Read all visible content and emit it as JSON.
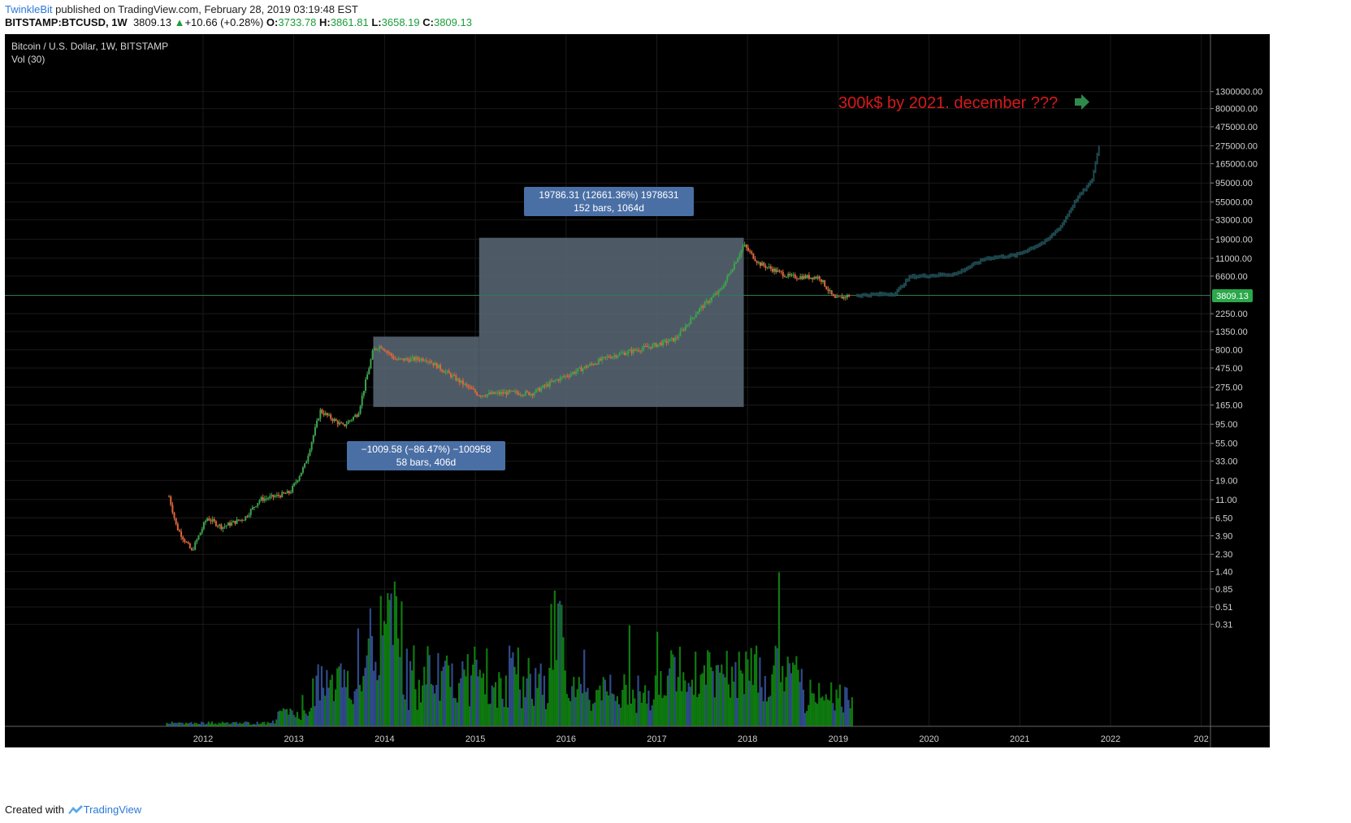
{
  "header": {
    "author": "TwinkleBit",
    "published_text": "published on TradingView.com, February 28, 2019 03:19:48 EST"
  },
  "symbol_bar": {
    "symbol": "BITSTAMP:BTCUSD, 1W",
    "price": "3809.13",
    "change": "+10.66 (+0.28%)",
    "open_label": "O:",
    "open": "3733.78",
    "high_label": "H:",
    "high": "3861.81",
    "low_label": "L:",
    "low": "3658.19",
    "close_label": "C:",
    "close": "3809.13"
  },
  "chart_panel": {
    "title": "Bitcoin / U.S. Dollar, 1W, BITSTAMP",
    "volume_label": "Vol (30)",
    "current_price_label": "3809.13",
    "annotation": "300k$ by 2021. december ???",
    "measure_big": {
      "line1": "19786.31 (12661.36%) 1978631",
      "line2": "152 bars, 1064d"
    },
    "measure_small": {
      "line1": "−1009.58 (−86.47%) −100958",
      "line2": "58 bars, 406d"
    }
  },
  "footer": {
    "created_with": "Created with",
    "brand": "TradingView"
  },
  "colors": {
    "background": "#000000",
    "up_candle": "#3fa34d",
    "down_candle": "#e0673a",
    "projection": "#1f4a50",
    "volume_green": "#0f7a0f",
    "volume_blue": "#2f4a8a",
    "annotation": "#d81a1a",
    "arrow": "#2f8a4a",
    "measure_box": "#5a6a78",
    "measure_label": "#4a6fa5",
    "price_tag": "#2aa84a"
  },
  "chart_data": {
    "type": "candlestick",
    "scale": "log",
    "title": "Bitcoin / U.S. Dollar, 1W, BITSTAMP",
    "y_ticks": [
      "1300000.00",
      "800000.00",
      "475000.00",
      "275000.00",
      "165000.00",
      "95000.00",
      "55000.00",
      "33000.00",
      "19000.00",
      "11000.00",
      "6600.00",
      "3809.13",
      "2250.00",
      "1350.00",
      "800.00",
      "475.00",
      "275.00",
      "165.00",
      "95.00",
      "55.00",
      "33.00",
      "19.00",
      "11.00",
      "6.50",
      "3.90",
      "2.30",
      "1.40",
      "0.85",
      "0.51",
      "0.31"
    ],
    "x_ticks": [
      "2012",
      "2013",
      "2014",
      "2015",
      "2016",
      "2017",
      "2018",
      "2019",
      "2020",
      "2021",
      "2022",
      "202"
    ],
    "price_path": [
      {
        "date": "2011-08",
        "close": 12
      },
      {
        "date": "2011-09",
        "close": 5
      },
      {
        "date": "2011-10",
        "close": 3.5
      },
      {
        "date": "2011-11",
        "close": 2.5
      },
      {
        "date": "2012-01",
        "close": 6.5
      },
      {
        "date": "2012-03",
        "close": 5
      },
      {
        "date": "2012-06",
        "close": 6.5
      },
      {
        "date": "2012-08",
        "close": 11
      },
      {
        "date": "2012-10",
        "close": 12
      },
      {
        "date": "2012-12",
        "close": 13.5
      },
      {
        "date": "2013-02",
        "close": 30
      },
      {
        "date": "2013-04",
        "close": 140
      },
      {
        "date": "2013-05",
        "close": 120
      },
      {
        "date": "2013-07",
        "close": 90
      },
      {
        "date": "2013-09",
        "close": 130
      },
      {
        "date": "2013-11",
        "close": 800
      },
      {
        "date": "2013-12",
        "close": 900
      },
      {
        "date": "2014-02",
        "close": 600
      },
      {
        "date": "2014-06",
        "close": 620
      },
      {
        "date": "2014-09",
        "close": 400
      },
      {
        "date": "2015-01",
        "close": 220
      },
      {
        "date": "2015-05",
        "close": 235
      },
      {
        "date": "2015-08",
        "close": 230
      },
      {
        "date": "2015-11",
        "close": 330
      },
      {
        "date": "2016-01",
        "close": 400
      },
      {
        "date": "2016-06",
        "close": 650
      },
      {
        "date": "2016-12",
        "close": 900
      },
      {
        "date": "2017-03",
        "close": 1100
      },
      {
        "date": "2017-06",
        "close": 2500
      },
      {
        "date": "2017-09",
        "close": 4500
      },
      {
        "date": "2017-12",
        "close": 16000
      },
      {
        "date": "2018-02",
        "close": 9500
      },
      {
        "date": "2018-06",
        "close": 6500
      },
      {
        "date": "2018-10",
        "close": 6400
      },
      {
        "date": "2018-12",
        "close": 3400
      },
      {
        "date": "2019-02",
        "close": 3809.13
      }
    ],
    "projection_path": [
      {
        "date": "2019-03",
        "close": 3800
      },
      {
        "date": "2019-08",
        "close": 4000
      },
      {
        "date": "2019-10",
        "close": 6500
      },
      {
        "date": "2020-04",
        "close": 7000
      },
      {
        "date": "2020-08",
        "close": 11000
      },
      {
        "date": "2020-12",
        "close": 12000
      },
      {
        "date": "2021-04",
        "close": 18000
      },
      {
        "date": "2021-06",
        "close": 28000
      },
      {
        "date": "2021-08",
        "close": 60000
      },
      {
        "date": "2021-10",
        "close": 100000
      },
      {
        "date": "2021-11",
        "close": 280000
      }
    ],
    "measurements": [
      {
        "label": "19786.31 (12661.36%) 1978631",
        "detail": "152 bars, 1064d",
        "from_date": "2015-01",
        "to_date": "2017-12",
        "from_price": 156,
        "to_price": 19786
      },
      {
        "label": "−1009.58 (−86.47%) −100958",
        "detail": "58 bars, 406d",
        "from_date": "2013-11",
        "to_date": "2015-01",
        "from_price": 1167,
        "to_price": 156
      }
    ],
    "volume_series_name": "Vol (30)"
  }
}
